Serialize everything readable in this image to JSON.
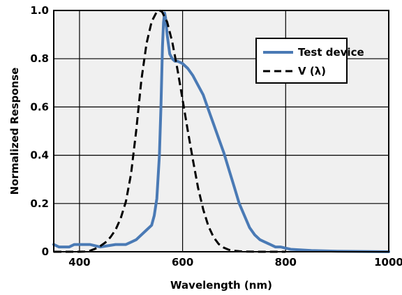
{
  "chart_data": {
    "type": "line",
    "title": "",
    "xlabel": "Wavelength (nm)",
    "ylabel": "Normalized Response",
    "xlim": [
      350,
      1000
    ],
    "ylim": [
      0,
      1
    ],
    "x_ticks": [
      400,
      600,
      800,
      1000
    ],
    "y_ticks": [
      0,
      0.2,
      0.4,
      0.6,
      0.8,
      1.0
    ],
    "x_tick_labels": [
      "400",
      "600",
      "800",
      "1000"
    ],
    "y_tick_labels": [
      "0",
      "0.2",
      "0.4",
      "0.6",
      "0.8",
      "1.0"
    ],
    "grid": true,
    "legend_position": "top-right",
    "background_color": "#f0f0f0",
    "series": [
      {
        "name": "Test device",
        "color": "#4a7ab5",
        "style": "solid",
        "points": [
          [
            350,
            0.03
          ],
          [
            360,
            0.02
          ],
          [
            380,
            0.02
          ],
          [
            390,
            0.03
          ],
          [
            420,
            0.03
          ],
          [
            440,
            0.02
          ],
          [
            470,
            0.03
          ],
          [
            490,
            0.03
          ],
          [
            500,
            0.04
          ],
          [
            510,
            0.05
          ],
          [
            520,
            0.07
          ],
          [
            530,
            0.09
          ],
          [
            540,
            0.11
          ],
          [
            545,
            0.15
          ],
          [
            550,
            0.22
          ],
          [
            555,
            0.4
          ],
          [
            558,
            0.6
          ],
          [
            561,
            0.85
          ],
          [
            563,
            0.95
          ],
          [
            565,
            0.99
          ],
          [
            567,
            0.97
          ],
          [
            570,
            0.9
          ],
          [
            575,
            0.82
          ],
          [
            580,
            0.8
          ],
          [
            585,
            0.79
          ],
          [
            590,
            0.79
          ],
          [
            600,
            0.78
          ],
          [
            610,
            0.76
          ],
          [
            620,
            0.73
          ],
          [
            630,
            0.69
          ],
          [
            640,
            0.65
          ],
          [
            650,
            0.59
          ],
          [
            660,
            0.53
          ],
          [
            670,
            0.47
          ],
          [
            680,
            0.41
          ],
          [
            690,
            0.34
          ],
          [
            700,
            0.27
          ],
          [
            710,
            0.2
          ],
          [
            720,
            0.15
          ],
          [
            730,
            0.1
          ],
          [
            740,
            0.07
          ],
          [
            750,
            0.05
          ],
          [
            760,
            0.04
          ],
          [
            770,
            0.03
          ],
          [
            780,
            0.02
          ],
          [
            790,
            0.02
          ],
          [
            800,
            0.015
          ],
          [
            810,
            0.01
          ],
          [
            850,
            0.005
          ],
          [
            900,
            0.002
          ],
          [
            1000,
            0.0
          ]
        ]
      },
      {
        "name": "V (λ)",
        "color": "#000000",
        "style": "dashed",
        "points": [
          [
            350,
            0.0
          ],
          [
            380,
            0.0
          ],
          [
            400,
            0.0
          ],
          [
            410,
            0.001
          ],
          [
            420,
            0.004
          ],
          [
            430,
            0.012
          ],
          [
            440,
            0.023
          ],
          [
            450,
            0.038
          ],
          [
            460,
            0.06
          ],
          [
            470,
            0.091
          ],
          [
            480,
            0.139
          ],
          [
            490,
            0.208
          ],
          [
            500,
            0.323
          ],
          [
            510,
            0.503
          ],
          [
            520,
            0.71
          ],
          [
            530,
            0.862
          ],
          [
            540,
            0.954
          ],
          [
            550,
            0.995
          ],
          [
            555,
            1.0
          ],
          [
            560,
            0.995
          ],
          [
            570,
            0.952
          ],
          [
            580,
            0.87
          ],
          [
            590,
            0.757
          ],
          [
            600,
            0.631
          ],
          [
            610,
            0.503
          ],
          [
            620,
            0.381
          ],
          [
            630,
            0.265
          ],
          [
            640,
            0.175
          ],
          [
            650,
            0.107
          ],
          [
            660,
            0.061
          ],
          [
            670,
            0.032
          ],
          [
            680,
            0.017
          ],
          [
            690,
            0.008
          ],
          [
            700,
            0.004
          ],
          [
            710,
            0.002
          ],
          [
            720,
            0.001
          ],
          [
            750,
            0.0
          ],
          [
            800,
            0.0
          ]
        ]
      }
    ]
  }
}
